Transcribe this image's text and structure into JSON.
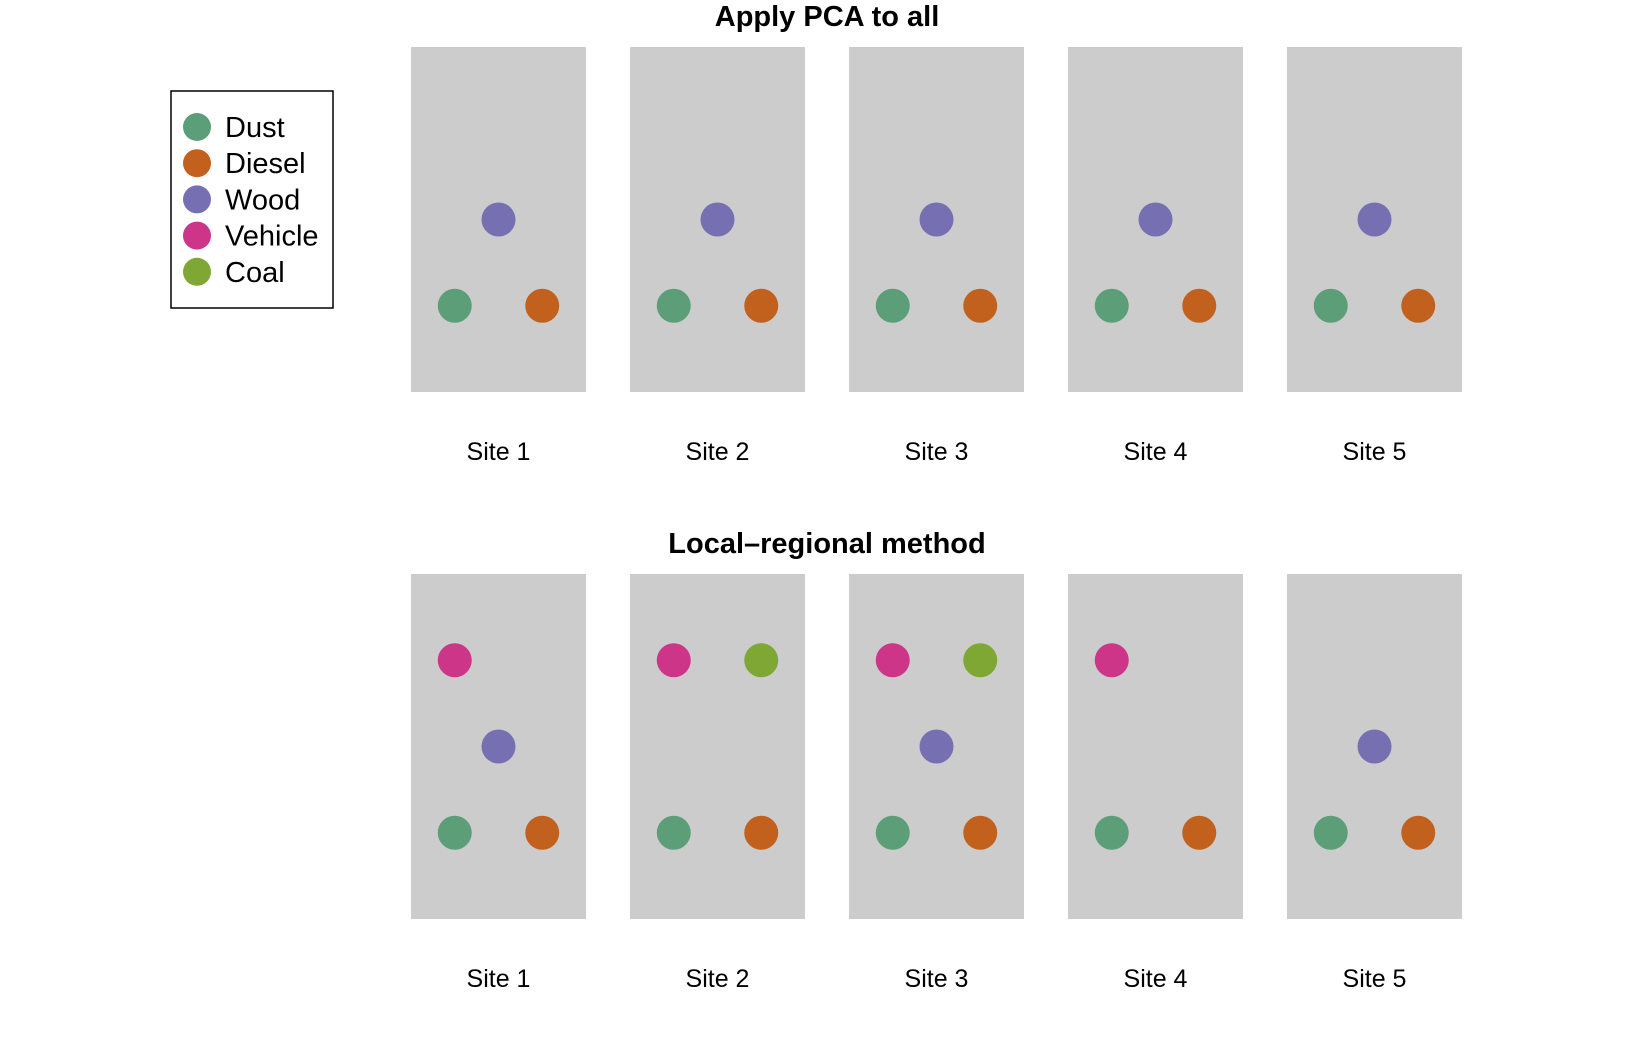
{
  "sources": [
    {
      "key": "dust",
      "label": "Dust",
      "color": "#5b9e78"
    },
    {
      "key": "diesel",
      "label": "Diesel",
      "color": "#c2601d"
    },
    {
      "key": "wood",
      "label": "Wood",
      "color": "#7670b2"
    },
    {
      "key": "vehicle",
      "label": "Vehicle",
      "color": "#cc3588"
    },
    {
      "key": "coal",
      "label": "Coal",
      "color": "#7ea734"
    }
  ],
  "panel_fill": "#cccccc",
  "panels": [
    {
      "title": "Apply PCA to all",
      "sites": [
        {
          "label": "Site 1",
          "sources": [
            "wood",
            "dust",
            "diesel"
          ]
        },
        {
          "label": "Site 2",
          "sources": [
            "wood",
            "dust",
            "diesel"
          ]
        },
        {
          "label": "Site 3",
          "sources": [
            "wood",
            "dust",
            "diesel"
          ]
        },
        {
          "label": "Site 4",
          "sources": [
            "wood",
            "dust",
            "diesel"
          ]
        },
        {
          "label": "Site 5",
          "sources": [
            "wood",
            "dust",
            "diesel"
          ]
        }
      ]
    },
    {
      "title": "Local–regional method",
      "sites": [
        {
          "label": "Site 1",
          "sources": [
            "vehicle",
            "wood",
            "dust",
            "diesel"
          ]
        },
        {
          "label": "Site 2",
          "sources": [
            "vehicle",
            "coal",
            "dust",
            "diesel"
          ]
        },
        {
          "label": "Site 3",
          "sources": [
            "vehicle",
            "coal",
            "wood",
            "dust",
            "diesel"
          ]
        },
        {
          "label": "Site 4",
          "sources": [
            "vehicle",
            "dust",
            "diesel"
          ]
        },
        {
          "label": "Site 5",
          "sources": [
            "wood",
            "dust",
            "diesel"
          ]
        }
      ]
    }
  ]
}
